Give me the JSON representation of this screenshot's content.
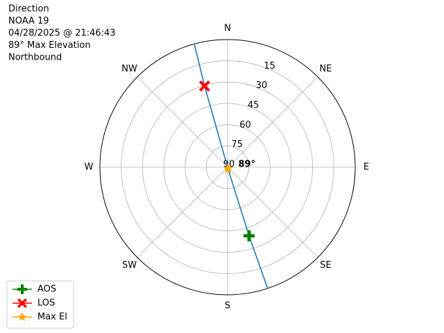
{
  "chart_data": {
    "type": "polar",
    "info_lines": [
      "Direction",
      "NOAA 19",
      "04/28/2025 @ 21:46:43",
      "89° Max Elevation",
      "Northbound"
    ],
    "theta_ticks": [
      {
        "value": 0,
        "label": "N"
      },
      {
        "value": 45,
        "label": "NE"
      },
      {
        "value": 90,
        "label": "E"
      },
      {
        "value": 135,
        "label": "SE"
      },
      {
        "value": 180,
        "label": "S"
      },
      {
        "value": 225,
        "label": "SW"
      },
      {
        "value": 270,
        "label": "W"
      },
      {
        "value": 315,
        "label": "NW"
      }
    ],
    "rlim": [
      90,
      0
    ],
    "rticks": [
      15,
      30,
      45,
      60,
      75,
      90
    ],
    "grid": true,
    "track": {
      "color": "#1f77b4",
      "azimuth": [
        161.7,
        162.6,
        165,
        344.2,
        344.9
      ],
      "elevation": [
        0,
        39.3,
        89,
        30.5,
        0
      ]
    },
    "series": [
      {
        "name": "AOS",
        "color": "#008000",
        "marker": "plus",
        "azimuth": [
          162.6
        ],
        "elevation": [
          39.3
        ]
      },
      {
        "name": "LOS",
        "color": "#ff0000",
        "marker": "x",
        "azimuth": [
          344.2
        ],
        "elevation": [
          30.5
        ]
      },
      {
        "name": "Max El",
        "color": "#ffa500",
        "marker": "star",
        "azimuth": [
          165
        ],
        "elevation": [
          89
        ]
      }
    ],
    "annotation": "89°",
    "legend": "lower left"
  }
}
